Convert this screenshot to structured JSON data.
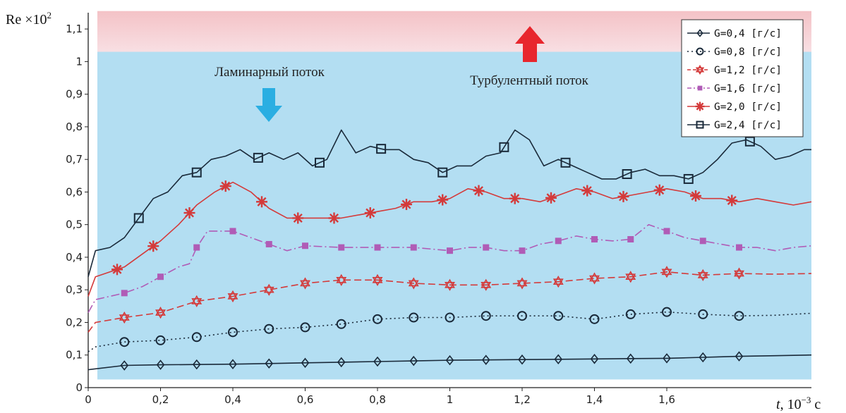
{
  "chart_data": {
    "type": "line",
    "ylabel": "Re ×10",
    "ylabel_exp": "2",
    "xlabel_var": "t",
    "xlabel_unit": ", 10",
    "xlabel_exp": "−3",
    "xlabel_tail": " с",
    "xlim": [
      0,
      2.0
    ],
    "ylim": [
      0,
      1.15
    ],
    "x_ticks": [
      {
        "value": 0,
        "label": "0"
      },
      {
        "value": 0.2,
        "label": "0,2"
      },
      {
        "value": 0.4,
        "label": "0,4"
      },
      {
        "value": 0.6,
        "label": "0,6"
      },
      {
        "value": 0.8,
        "label": "0,8"
      },
      {
        "value": 1.0,
        "label": "1"
      },
      {
        "value": 1.2,
        "label": "1,2"
      },
      {
        "value": 1.4,
        "label": "1,4"
      },
      {
        "value": 1.6,
        "label": "1,6"
      }
    ],
    "y_ticks": [
      {
        "value": 0,
        "label": "0"
      },
      {
        "value": 0.1,
        "label": "0,1"
      },
      {
        "value": 0.2,
        "label": "0,2"
      },
      {
        "value": 0.3,
        "label": "0,3"
      },
      {
        "value": 0.4,
        "label": "0,4"
      },
      {
        "value": 0.5,
        "label": "0,5"
      },
      {
        "value": 0.6,
        "label": "0,6"
      },
      {
        "value": 0.7,
        "label": "0,7"
      },
      {
        "value": 0.8,
        "label": "0,8"
      },
      {
        "value": 0.9,
        "label": "0,9"
      },
      {
        "value": 1.0,
        "label": "1"
      },
      {
        "value": 1.1,
        "label": "1,1"
      }
    ],
    "regions": {
      "laminar": {
        "label": "Ламинарный поток",
        "y_from": 0.025,
        "y_to": 1.03,
        "color": "#b3def2"
      },
      "turbulent": {
        "label": "Турбулентный поток",
        "y_from": 1.03,
        "y_to": 1.155,
        "color": "#f4c2c6"
      }
    },
    "arrow_colors": {
      "laminar": "#2aaee2",
      "turbulent": "#e8262d"
    },
    "legend_position": "top-right",
    "series": [
      {
        "name": "G=0,4 [г/с]",
        "color": "#1a2a3a",
        "dash": "",
        "marker": "diamond",
        "x": [
          0,
          0.1,
          0.2,
          0.3,
          0.4,
          0.5,
          0.6,
          0.7,
          0.8,
          0.9,
          1.0,
          1.1,
          1.2,
          1.3,
          1.4,
          1.5,
          1.6,
          1.7,
          1.8,
          1.9,
          2.0
        ],
        "y": [
          0.055,
          0.068,
          0.07,
          0.071,
          0.072,
          0.074,
          0.076,
          0.078,
          0.08,
          0.082,
          0.084,
          0.085,
          0.086,
          0.087,
          0.088,
          0.089,
          0.09,
          0.093,
          0.096,
          0.098,
          0.1
        ],
        "marker_x": [
          0.1,
          0.2,
          0.3,
          0.4,
          0.5,
          0.6,
          0.7,
          0.8,
          0.9,
          1.0,
          1.1,
          1.2,
          1.3,
          1.4,
          1.5,
          1.6,
          1.7,
          1.8
        ]
      },
      {
        "name": "G=0,8 [г/с]",
        "color": "#1a2a3a",
        "dash": "2,4",
        "marker": "circle",
        "x": [
          0,
          0.02,
          0.1,
          0.2,
          0.3,
          0.4,
          0.5,
          0.6,
          0.7,
          0.8,
          0.9,
          1.0,
          1.1,
          1.2,
          1.3,
          1.4,
          1.5,
          1.6,
          1.7,
          1.8,
          1.9,
          2.0
        ],
        "y": [
          0.11,
          0.125,
          0.14,
          0.145,
          0.155,
          0.17,
          0.18,
          0.185,
          0.195,
          0.21,
          0.215,
          0.215,
          0.22,
          0.22,
          0.22,
          0.21,
          0.225,
          0.232,
          0.225,
          0.22,
          0.222,
          0.228
        ],
        "marker_x": [
          0.1,
          0.2,
          0.3,
          0.4,
          0.5,
          0.6,
          0.7,
          0.8,
          0.9,
          1.0,
          1.1,
          1.2,
          1.3,
          1.4,
          1.5,
          1.6,
          1.7,
          1.8
        ]
      },
      {
        "name": "G=1,2 [г/с]",
        "color": "#d43a3a",
        "dash": "10,5",
        "marker": "star6",
        "x": [
          0,
          0.02,
          0.1,
          0.2,
          0.3,
          0.4,
          0.5,
          0.6,
          0.7,
          0.8,
          0.9,
          1.0,
          1.1,
          1.2,
          1.3,
          1.4,
          1.5,
          1.6,
          1.7,
          1.8,
          1.9,
          2.0
        ],
        "y": [
          0.17,
          0.2,
          0.215,
          0.23,
          0.265,
          0.28,
          0.3,
          0.32,
          0.33,
          0.33,
          0.32,
          0.315,
          0.315,
          0.32,
          0.325,
          0.335,
          0.34,
          0.355,
          0.345,
          0.35,
          0.348,
          0.35
        ],
        "marker_x": [
          0.1,
          0.2,
          0.3,
          0.4,
          0.5,
          0.6,
          0.7,
          0.8,
          0.9,
          1.0,
          1.1,
          1.2,
          1.3,
          1.4,
          1.5,
          1.6,
          1.7,
          1.8
        ]
      },
      {
        "name": "G=1,6 [г/с]",
        "color": "#b05cb6",
        "dash": "12,4,2,4",
        "marker": "square-filled",
        "x": [
          0,
          0.02,
          0.1,
          0.15,
          0.2,
          0.25,
          0.28,
          0.3,
          0.33,
          0.36,
          0.4,
          0.45,
          0.5,
          0.55,
          0.6,
          0.7,
          0.8,
          0.9,
          1.0,
          1.05,
          1.1,
          1.15,
          1.2,
          1.25,
          1.3,
          1.35,
          1.4,
          1.45,
          1.5,
          1.55,
          1.6,
          1.65,
          1.7,
          1.75,
          1.8,
          1.85,
          1.9,
          1.95,
          2.0
        ],
        "y": [
          0.23,
          0.27,
          0.29,
          0.31,
          0.34,
          0.37,
          0.38,
          0.43,
          0.48,
          0.48,
          0.48,
          0.46,
          0.44,
          0.42,
          0.435,
          0.43,
          0.43,
          0.43,
          0.42,
          0.43,
          0.43,
          0.42,
          0.42,
          0.44,
          0.45,
          0.465,
          0.455,
          0.45,
          0.455,
          0.5,
          0.48,
          0.46,
          0.45,
          0.44,
          0.43,
          0.43,
          0.42,
          0.43,
          0.435
        ],
        "marker_x": [
          0.1,
          0.2,
          0.3,
          0.4,
          0.5,
          0.6,
          0.7,
          0.8,
          0.9,
          1.0,
          1.1,
          1.2,
          1.3,
          1.4,
          1.5,
          1.6,
          1.7,
          1.8
        ]
      },
      {
        "name": "G=2,0 [г/с]",
        "color": "#d43a3a",
        "dash": "",
        "marker": "asterisk",
        "x": [
          0,
          0.02,
          0.1,
          0.15,
          0.2,
          0.25,
          0.3,
          0.35,
          0.4,
          0.45,
          0.5,
          0.55,
          0.6,
          0.65,
          0.7,
          0.75,
          0.8,
          0.85,
          0.9,
          0.95,
          1.0,
          1.05,
          1.1,
          1.15,
          1.2,
          1.25,
          1.3,
          1.35,
          1.4,
          1.45,
          1.5,
          1.55,
          1.6,
          1.65,
          1.7,
          1.75,
          1.8,
          1.85,
          1.9,
          1.95,
          2.0
        ],
        "y": [
          0.28,
          0.34,
          0.37,
          0.41,
          0.45,
          0.5,
          0.56,
          0.6,
          0.63,
          0.6,
          0.55,
          0.52,
          0.52,
          0.52,
          0.52,
          0.53,
          0.54,
          0.55,
          0.57,
          0.57,
          0.58,
          0.61,
          0.6,
          0.58,
          0.58,
          0.57,
          0.59,
          0.61,
          0.6,
          0.58,
          0.59,
          0.6,
          0.61,
          0.6,
          0.58,
          0.58,
          0.57,
          0.58,
          0.57,
          0.56,
          0.57
        ],
        "marker_x": [
          0.08,
          0.18,
          0.28,
          0.38,
          0.48,
          0.58,
          0.68,
          0.78,
          0.88,
          0.98,
          1.08,
          1.18,
          1.28,
          1.38,
          1.48,
          1.58,
          1.68,
          1.78
        ]
      },
      {
        "name": "G=2,4 [г/с]",
        "color": "#1a2a3a",
        "dash": "",
        "marker": "square-open",
        "x": [
          0,
          0.02,
          0.06,
          0.1,
          0.14,
          0.18,
          0.22,
          0.26,
          0.3,
          0.34,
          0.38,
          0.42,
          0.46,
          0.5,
          0.54,
          0.58,
          0.62,
          0.66,
          0.7,
          0.74,
          0.78,
          0.82,
          0.86,
          0.9,
          0.94,
          0.98,
          1.02,
          1.06,
          1.1,
          1.14,
          1.18,
          1.22,
          1.26,
          1.3,
          1.34,
          1.38,
          1.42,
          1.46,
          1.5,
          1.54,
          1.58,
          1.62,
          1.66,
          1.7,
          1.74,
          1.78,
          1.82,
          1.86,
          1.9,
          1.94,
          1.98,
          2.0
        ],
        "y": [
          0.34,
          0.42,
          0.43,
          0.46,
          0.52,
          0.58,
          0.6,
          0.65,
          0.66,
          0.7,
          0.71,
          0.73,
          0.7,
          0.72,
          0.7,
          0.72,
          0.68,
          0.7,
          0.79,
          0.72,
          0.74,
          0.73,
          0.73,
          0.7,
          0.69,
          0.66,
          0.68,
          0.68,
          0.71,
          0.72,
          0.79,
          0.76,
          0.68,
          0.7,
          0.68,
          0.66,
          0.64,
          0.64,
          0.66,
          0.67,
          0.65,
          0.65,
          0.64,
          0.66,
          0.7,
          0.75,
          0.76,
          0.74,
          0.7,
          0.71,
          0.73,
          0.73
        ],
        "marker_x": [
          0.14,
          0.3,
          0.47,
          0.64,
          0.81,
          0.98,
          1.15,
          1.32,
          1.49,
          1.66,
          1.83
        ]
      }
    ]
  }
}
